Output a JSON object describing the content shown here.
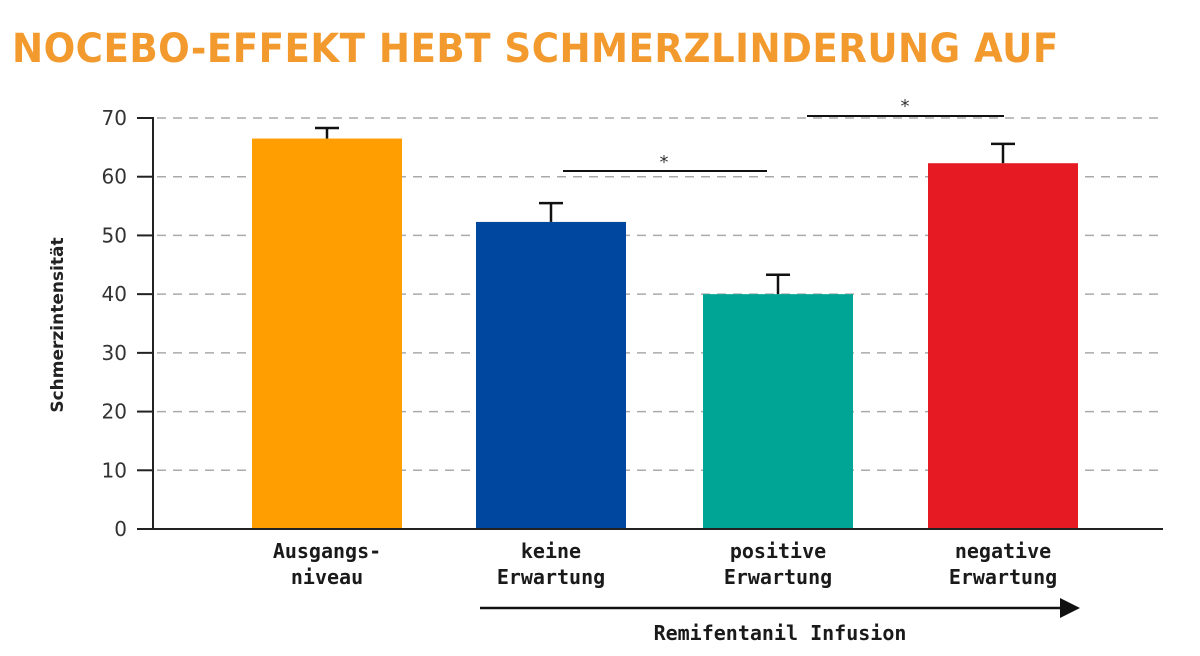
{
  "title": "NOCEBO-EFFEKT HEBT SCHMERZLINDERUNG AUF",
  "colors": {
    "title": "#F39A2E",
    "ausgangsniveau": "#FF9E00",
    "keine": "#0047A0",
    "positive": "#00A596",
    "negative": "#E51A23"
  },
  "arrow_label": "Remifentanil Infusion",
  "significance": [
    {
      "label": "*",
      "between": [
        "keine Erwartung",
        "positive Erwartung"
      ]
    },
    {
      "label": "*",
      "between": [
        "positive Erwartung",
        "negative Erwartung"
      ]
    }
  ],
  "chart_data": {
    "type": "bar",
    "title": "NOCEBO-EFFEKT HEBT SCHMERZLINDERUNG AUF",
    "xlabel": "Remifentanil Infusion",
    "ylabel": "Schmerzintensität",
    "ylim": [
      0,
      70
    ],
    "yticks": [
      0,
      10,
      20,
      30,
      40,
      50,
      60,
      70
    ],
    "grid": true,
    "categories": [
      "Ausgangs-niveau",
      "keine Erwartung",
      "positive Erwartung",
      "negative Erwartung"
    ],
    "category_lines": [
      [
        "Ausgangs-",
        "niveau"
      ],
      [
        "keine",
        "Erwartung"
      ],
      [
        "positive",
        "Erwartung"
      ],
      [
        "negative",
        "Erwartung"
      ]
    ],
    "values": [
      66.5,
      52.3,
      40.0,
      62.3
    ],
    "error_upper": [
      68.3,
      55.5,
      43.3,
      65.6
    ],
    "colors": [
      "#FF9E00",
      "#0047A0",
      "#00A596",
      "#E51A23"
    ],
    "annotations": [
      "* keine vs. positive Erwartung",
      "* positive vs. negative Erwartung"
    ]
  }
}
